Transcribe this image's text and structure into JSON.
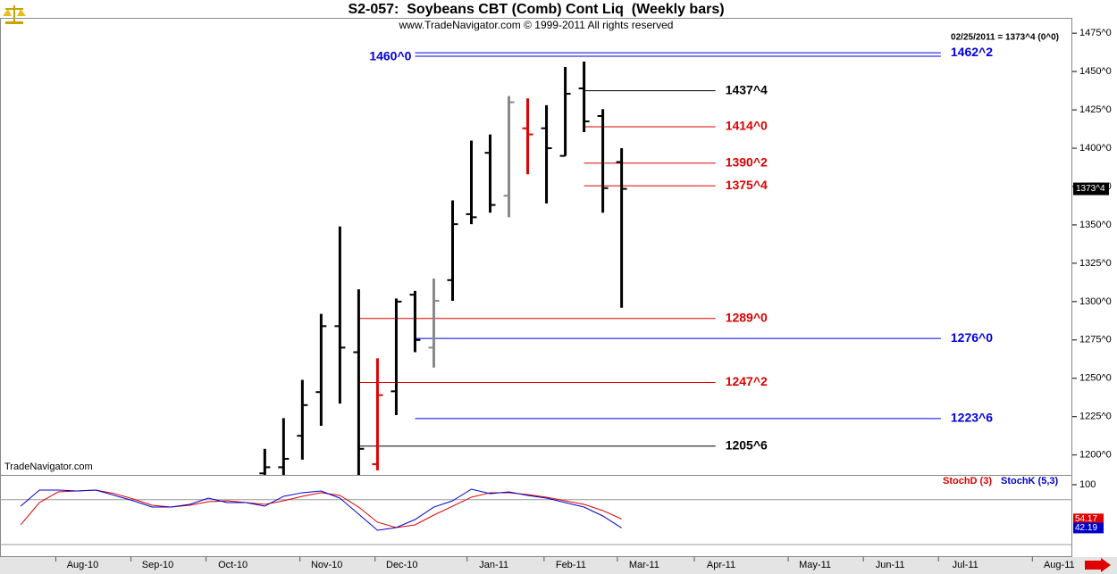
{
  "chart_data": [
    {
      "type": "ohlc",
      "title": "S2-057:  Soybeans CBT (Comb) Cont Liq  (Weekly bars)",
      "subtitle": "www.TradeNavigator.com © 1999-2011 All rights reserved",
      "annotation": "02/25/2011 = 1373^4 (0^0)",
      "watermark": "TradeNavigator.com",
      "categories": [
        null,
        null,
        null,
        null,
        null,
        null,
        null,
        null,
        null,
        null,
        null,
        null,
        null,
        null,
        null,
        null,
        null,
        null,
        null,
        null
      ],
      "open": [
        1188,
        1192,
        1212.5,
        1241,
        1284,
        1267,
        1194,
        1241.5,
        1304.5,
        1270,
        1314,
        1357,
        1397,
        1369,
        1413,
        1413,
        1395,
        1439,
        1421,
        1391
      ],
      "high": [
        1204,
        1224,
        1249,
        1292,
        1349,
        1308,
        1263,
        1302,
        1307,
        1315,
        1366,
        1405,
        1409,
        1434,
        1432.5,
        1428,
        1453,
        1456.5,
        1425.5,
        1400
      ],
      "low": [
        1185,
        1187,
        1197,
        1219,
        1233.5,
        1187,
        1190,
        1226,
        1267,
        1257,
        1300.5,
        1350.5,
        1358,
        1355,
        1383,
        1364,
        1395,
        1410.5,
        1358,
        1296
      ],
      "close": [
        1192,
        1197.5,
        1232.5,
        1284,
        1270,
        1204,
        1239,
        1300,
        1275,
        1300.5,
        1350.5,
        1355,
        1363,
        1430,
        1409,
        1400,
        1435.5,
        1417.5,
        1374,
        1373.5
      ],
      "colors": [
        "#000000",
        "#000000",
        "#000000",
        "#000000",
        "#000000",
        "#000000",
        "#e00000",
        "#000000",
        "#000000",
        "#888888",
        "#000000",
        "#000000",
        "#000000",
        "#888888",
        "#e00000",
        "#000000",
        "#000000",
        "#000000",
        "#000000",
        "#000000"
      ],
      "xlim": [
        -14.1,
        43.0
      ],
      "xticks": [
        {
          "value": -9.7,
          "label": "Aug-10"
        },
        {
          "value": -5.7,
          "label": "Sep-10"
        },
        {
          "value": -1.7,
          "label": "Oct-10"
        },
        {
          "value": 3.3,
          "label": "Nov-10"
        },
        {
          "value": 7.3,
          "label": "Dec-10"
        },
        {
          "value": 12.2,
          "label": "Jan-11"
        },
        {
          "value": 16.3,
          "label": "Feb-11"
        },
        {
          "value": 20.2,
          "label": "Mar-11"
        },
        {
          "value": 24.3,
          "label": "Apr-11"
        },
        {
          "value": 29.3,
          "label": "May-11"
        },
        {
          "value": 33.3,
          "label": "Jun-11"
        },
        {
          "value": 37.3,
          "label": "Jul-11"
        },
        {
          "value": 42.3,
          "label": "Aug-11"
        }
      ],
      "ylim": [
        1187,
        1485
      ],
      "yticks": [
        {
          "value": 1200,
          "label": "1200^0"
        },
        {
          "value": 1225,
          "label": "1225^0"
        },
        {
          "value": 1250,
          "label": "1250^0"
        },
        {
          "value": 1275,
          "label": "1275^0"
        },
        {
          "value": 1300,
          "label": "1300^0"
        },
        {
          "value": 1325,
          "label": "1325^0"
        },
        {
          "value": 1350,
          "label": "1350^0"
        },
        {
          "value": 1375,
          "label": "1375^0"
        },
        {
          "value": 1400,
          "label": "1400^0"
        },
        {
          "value": 1425,
          "label": "1425^0"
        },
        {
          "value": 1450,
          "label": "1450^0"
        },
        {
          "value": 1475,
          "label": "1475^0"
        }
      ],
      "levels": [
        {
          "value": 1462.25,
          "label": "1462^2",
          "color": "#0000dd",
          "x_start": 8,
          "x_end": 36
        },
        {
          "value": 1460,
          "label": "1460^0",
          "color": "#0000dd",
          "x_start": 8,
          "x_end": 36,
          "label_side": "start"
        },
        {
          "value": 1437.5,
          "label": "1437^4",
          "color": "#000000",
          "x_start": 17,
          "x_end": 24
        },
        {
          "value": 1414,
          "label": "1414^0",
          "color": "#dd0000",
          "x_start": 17,
          "x_end": 24
        },
        {
          "value": 1390.25,
          "label": "1390^2",
          "color": "#dd0000",
          "x_start": 17,
          "x_end": 24
        },
        {
          "value": 1375.5,
          "label": "1375^4",
          "color": "#dd0000",
          "x_start": 17,
          "x_end": 24
        },
        {
          "value": 1289,
          "label": "1289^0",
          "color": "#dd0000",
          "x_start": 5,
          "x_end": 24
        },
        {
          "value": 1276,
          "label": "1276^0",
          "color": "#0000dd",
          "x_start": 8,
          "x_end": 36
        },
        {
          "value": 1247.25,
          "label": "1247^2",
          "color": "#dd0000",
          "x_start": 5,
          "x_end": 24
        },
        {
          "value": 1223.75,
          "label": "1223^6",
          "color": "#0000dd",
          "x_start": 8,
          "x_end": 36
        },
        {
          "value": 1205.75,
          "label": "1205^6",
          "color": "#000000",
          "x_start": 5,
          "x_end": 24
        }
      ],
      "last_price": {
        "value": 1373.5,
        "label": "1373^4"
      }
    },
    {
      "type": "line",
      "x": [
        -13,
        -12,
        -11,
        -10,
        -9,
        -8,
        -7,
        -6,
        -5,
        -4,
        -3,
        -2,
        -1,
        0,
        1,
        2,
        3,
        4,
        5,
        6,
        7,
        8,
        9,
        10,
        11,
        12,
        13,
        14,
        15,
        16,
        17,
        18,
        19
      ],
      "series": [
        {
          "name": "StochD (3)",
          "color": "#dd0000",
          "values": [
            46.3,
            76.1,
            90.4,
            91.6,
            92.8,
            88.1,
            80.9,
            72.5,
            70.1,
            72.5,
            77.3,
            78.5,
            76.1,
            73.7,
            78.5,
            84.5,
            89.3,
            85.7,
            70.1,
            49.9,
            42.7,
            46.3,
            59.4,
            71.3,
            83.3,
            89.3,
            89.3,
            86.9,
            83.3,
            78.5,
            73.7,
            65.4,
            54.17
          ]
        },
        {
          "name": "StochK (5,3)",
          "color": "#0000cc",
          "values": [
            71.3,
            92.8,
            92.8,
            91.6,
            92.8,
            85.7,
            78.5,
            70.1,
            70.1,
            73.7,
            82.1,
            76.1,
            76.1,
            71.3,
            84.5,
            89.3,
            91.6,
            82.1,
            60.6,
            39.1,
            42.7,
            53.4,
            70.1,
            78.5,
            94.0,
            88.1,
            90.4,
            85.7,
            82.1,
            76.1,
            70.1,
            58.2,
            42.19
          ]
        }
      ],
      "ylim": [
        3.3,
        113.1
      ],
      "yticks": [
        100
      ],
      "ref_lines": [
        80,
        20
      ]
    }
  ]
}
